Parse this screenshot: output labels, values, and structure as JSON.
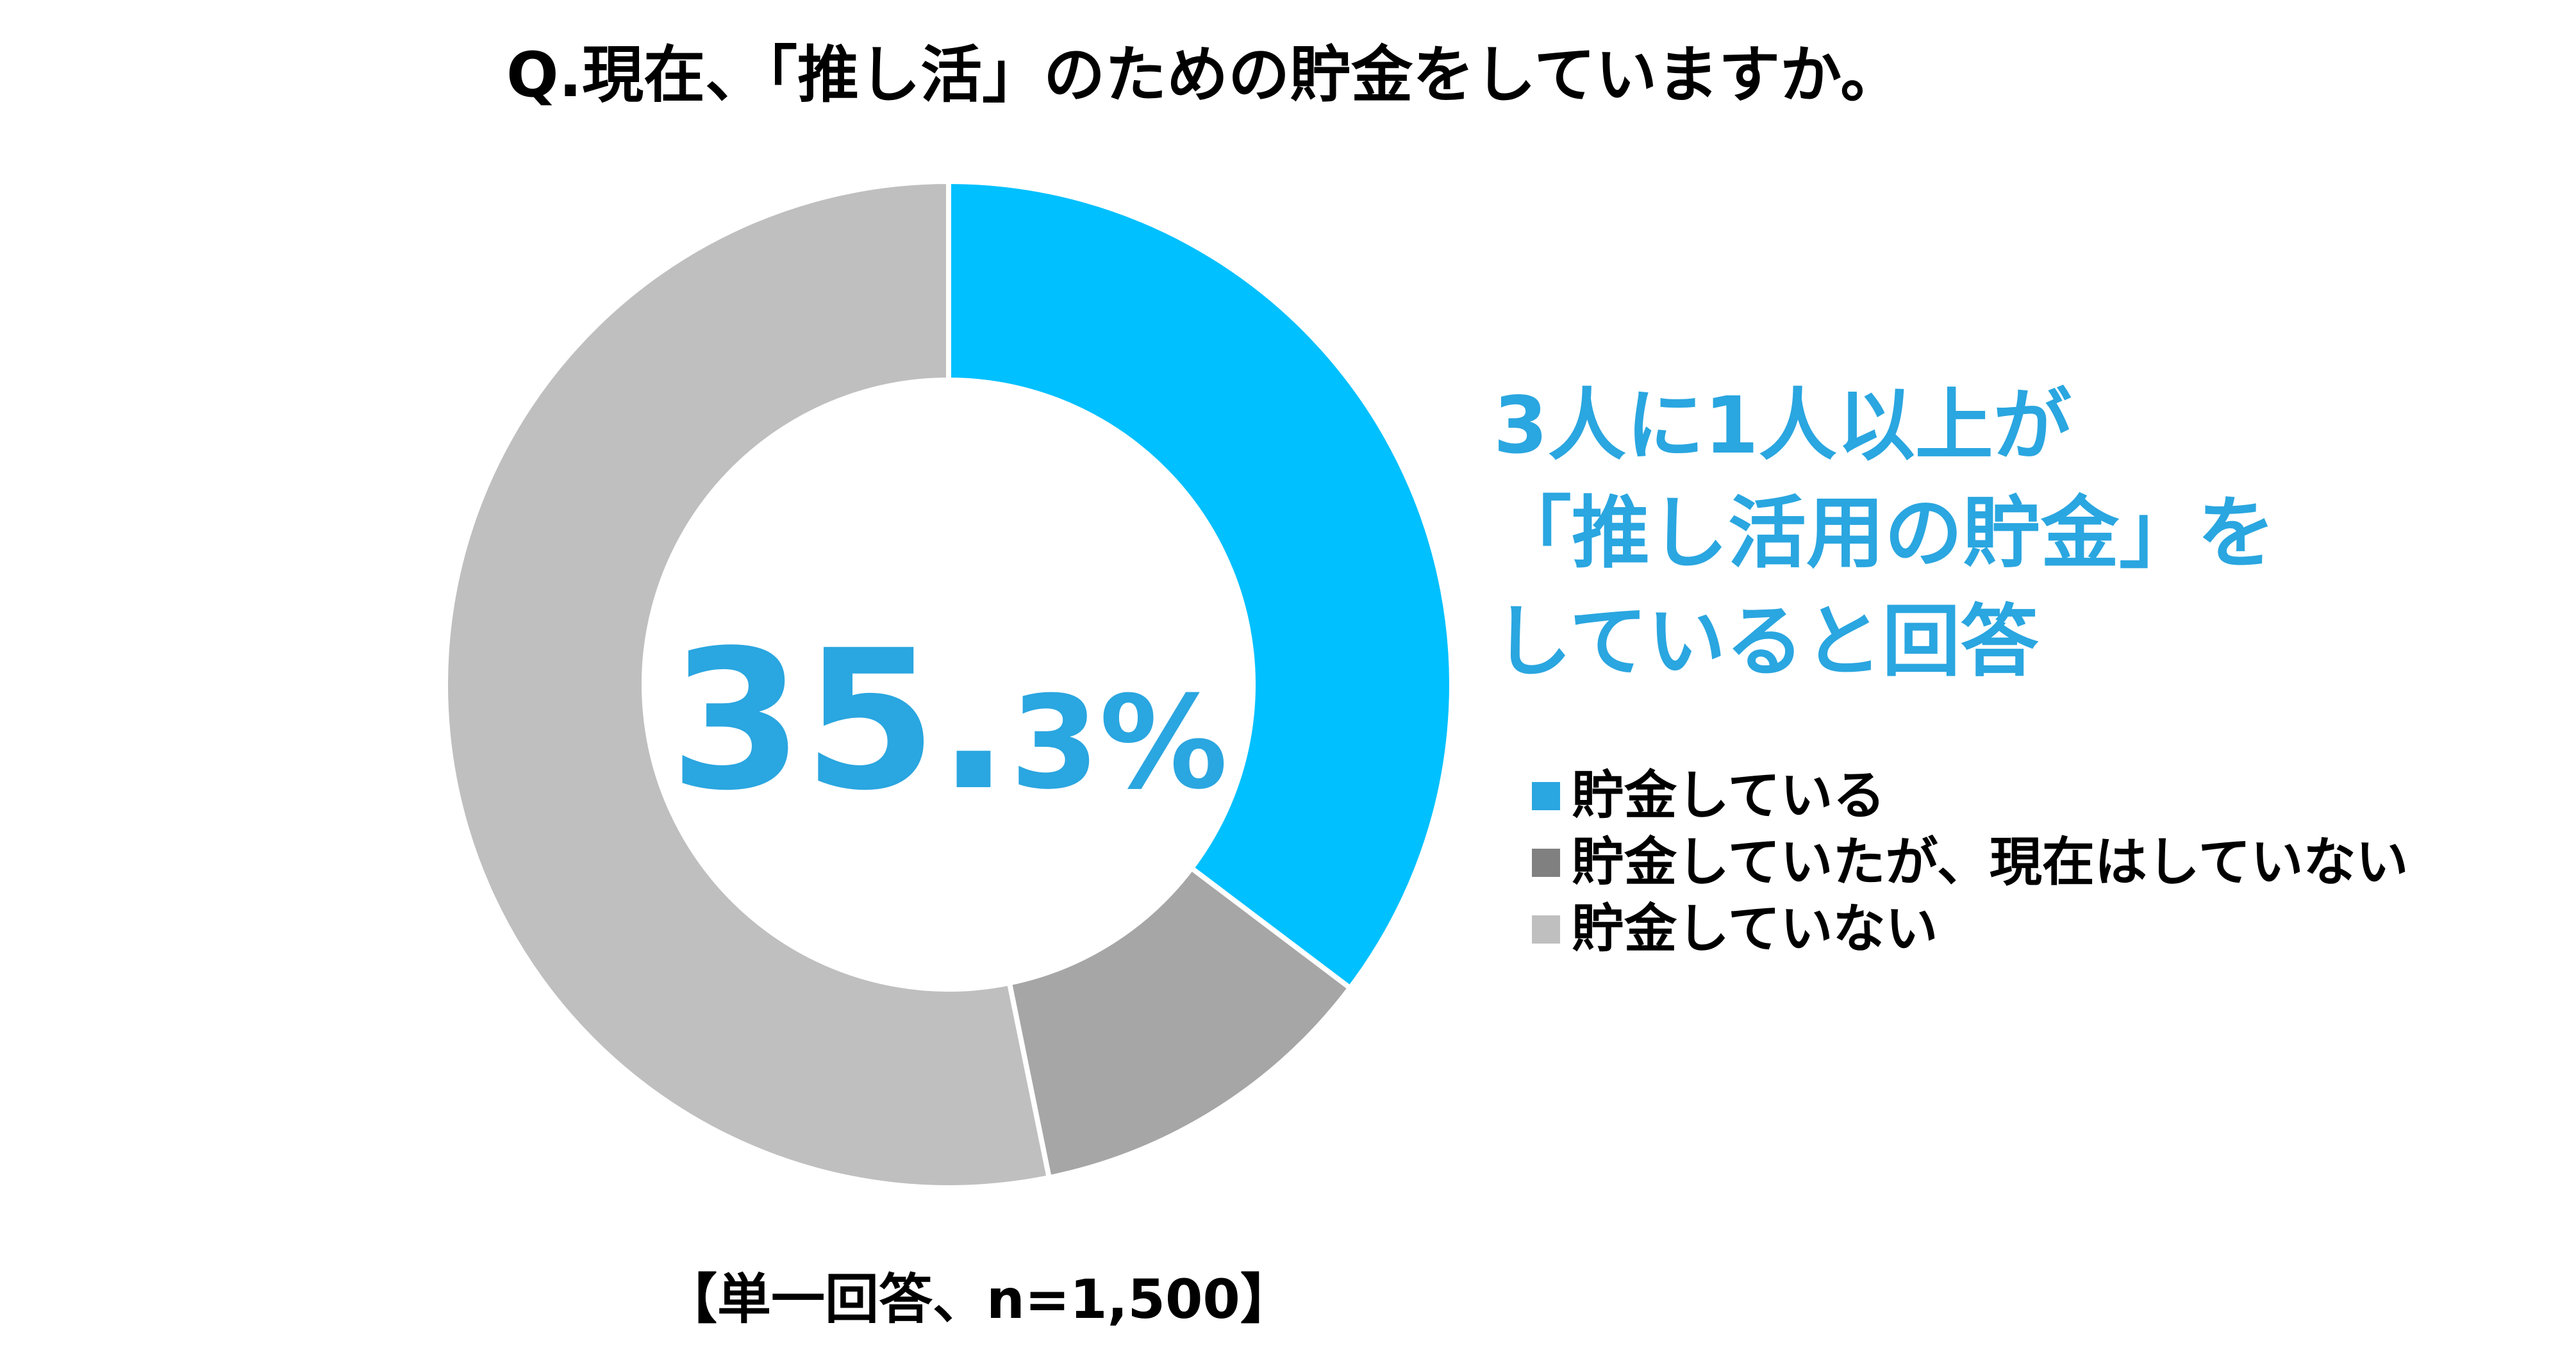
{
  "chart_data": {
    "type": "pie",
    "title": "Q.現在、「推し活」のための貯金をしていますか。",
    "categories": [
      "貯金している",
      "貯金していたが、現在はしていない",
      "貯金していない"
    ],
    "values": [
      35.3,
      11.5,
      53.2
    ],
    "colors": [
      "#00c0ff",
      "#a6a6a6",
      "#bfbfbf"
    ],
    "legend_colors": [
      "#2aa6e0",
      "#808080",
      "#bfbfbf"
    ],
    "center_label": {
      "integer": "35.",
      "decimal": "3%"
    },
    "callout_lines": [
      "3人に1人以上が",
      "「推し活用の貯金」を",
      "していると回答"
    ],
    "note": "【単一回答、n=1,500】",
    "legend_position": "right"
  }
}
